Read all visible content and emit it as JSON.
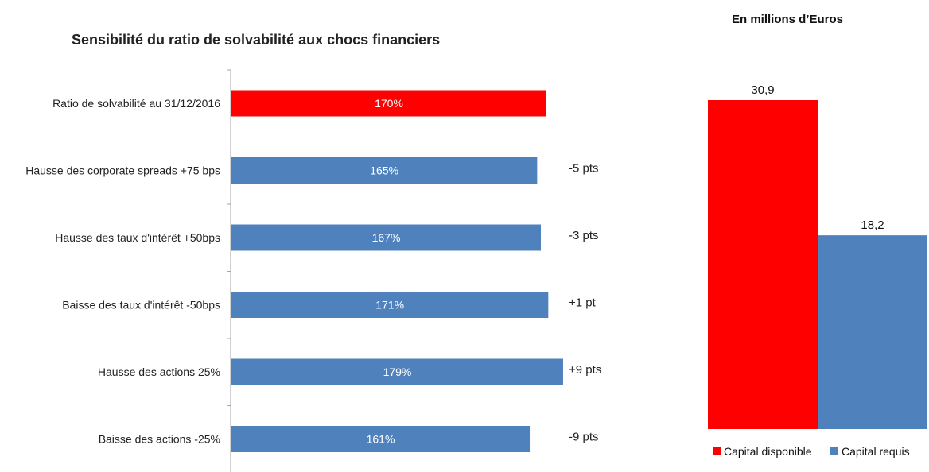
{
  "chart_data": [
    {
      "type": "bar",
      "orientation": "horizontal",
      "title": "Sensibilité du ratio de solvabilité aux chocs financiers",
      "categories": [
        "Ratio de solvabilité au 31/12/2016",
        "Hausse des corporate spreads +75 bps",
        "Hausse des taux d'intérêt +50bps",
        "Baisse des taux d'intérêt -50bps",
        "Hausse des actions 25%",
        "Baisse des actions -25%"
      ],
      "values": [
        170,
        165,
        167,
        171,
        179,
        161
      ],
      "data_labels": [
        "170%",
        "165%",
        "167%",
        "171%",
        "179%",
        "161%"
      ],
      "deltas": [
        "",
        "-5 pts",
        "-3 pts",
        "+1 pt",
        "+9 pts",
        "-9 pts"
      ],
      "colors": [
        "#ff0000",
        "#4f81bd",
        "#4f81bd",
        "#4f81bd",
        "#4f81bd",
        "#4f81bd"
      ],
      "grid": false
    },
    {
      "type": "bar",
      "title": "En millions d’Euros",
      "categories": [
        "Capital disponible",
        "Capital requis"
      ],
      "values": [
        30.9,
        18.2
      ],
      "data_labels": [
        "30,9",
        "18,2"
      ],
      "colors": [
        "#ff0000",
        "#4f81bd"
      ],
      "legend": "bottom",
      "grid": false
    }
  ]
}
